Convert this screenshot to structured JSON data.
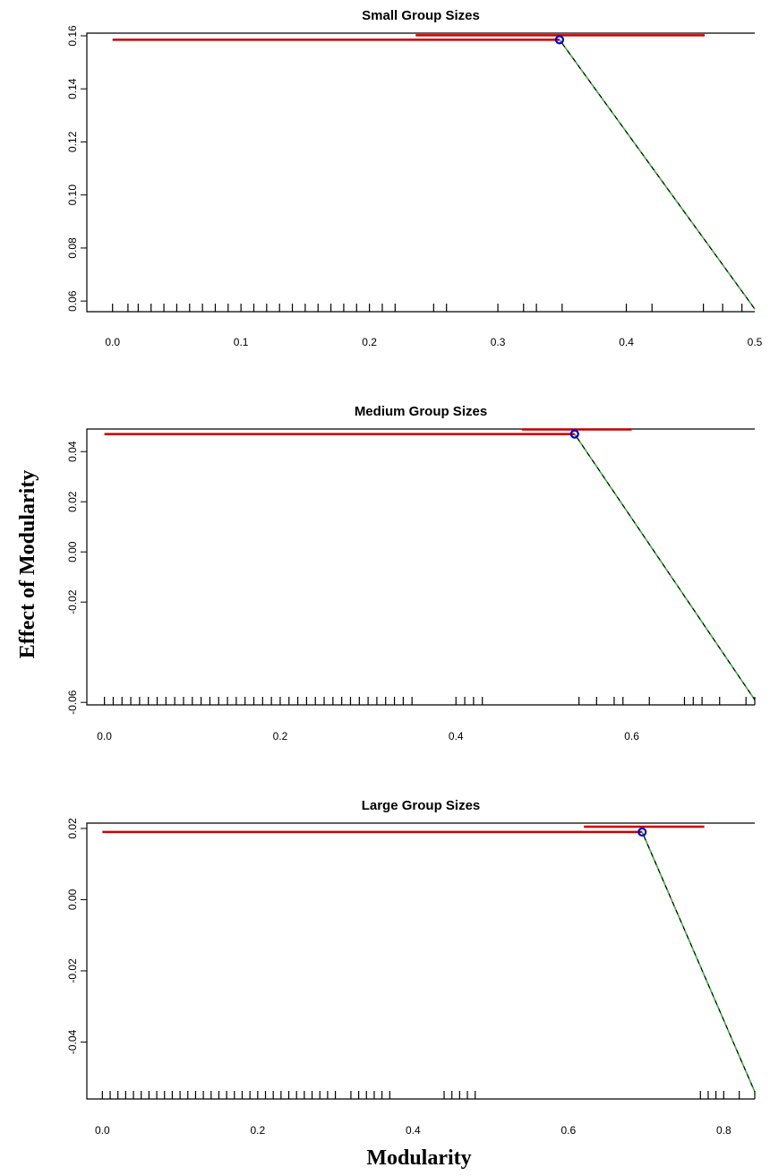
{
  "ylabel": "Effect of Modularity",
  "xlabel": "Modularity",
  "colors": {
    "threshold_line": "#cc0000",
    "fit_line": "#000000",
    "fit_dashed": "#33bb33",
    "breakpoint_marker": "#0000cc",
    "axis": "#000000"
  },
  "chart_data": [
    {
      "type": "line",
      "title": "Small Group Sizes",
      "xlim": [
        -0.02,
        0.5
      ],
      "ylim": [
        0.056,
        0.161
      ],
      "xticks": [
        "0.0",
        "0.1",
        "0.2",
        "0.3",
        "0.4",
        "0.5"
      ],
      "xtick_values": [
        0.0,
        0.1,
        0.2,
        0.3,
        0.4,
        0.5
      ],
      "yticks": [
        "0.06",
        "0.08",
        "0.10",
        "0.12",
        "0.14",
        "0.16"
      ],
      "ytick_values": [
        0.06,
        0.08,
        0.1,
        0.12,
        0.14,
        0.16
      ],
      "fit": {
        "x": [
          0.0,
          0.348,
          0.5
        ],
        "y": [
          0.1585,
          0.1585,
          0.057
        ]
      },
      "breakpoint": {
        "x": 0.348,
        "y": 0.1585
      },
      "confidence_interval": {
        "x": [
          0.236,
          0.461
        ],
        "y": 0.1602
      },
      "rug": [
        0.0,
        0.012,
        0.02,
        0.03,
        0.04,
        0.05,
        0.06,
        0.07,
        0.08,
        0.09,
        0.1,
        0.11,
        0.12,
        0.13,
        0.14,
        0.15,
        0.16,
        0.17,
        0.18,
        0.19,
        0.2,
        0.21,
        0.22,
        0.25,
        0.26,
        0.3,
        0.32,
        0.33,
        0.35,
        0.4,
        0.42,
        0.46,
        0.475,
        0.49
      ]
    },
    {
      "type": "line",
      "title": "Medium Group Sizes",
      "xlim": [
        -0.02,
        0.74
      ],
      "ylim": [
        -0.061,
        0.049
      ],
      "xticks": [
        "0.0",
        "0.2",
        "0.4",
        "0.6"
      ],
      "xtick_values": [
        0.0,
        0.2,
        0.4,
        0.6
      ],
      "yticks": [
        "-0.06",
        "-0.02",
        "0.00",
        "0.02",
        "0.04"
      ],
      "ytick_values": [
        -0.06,
        -0.02,
        0.0,
        0.02,
        0.04
      ],
      "fit": {
        "x": [
          0.0,
          0.535,
          0.74
        ],
        "y": [
          0.047,
          0.047,
          -0.059
        ]
      },
      "breakpoint": {
        "x": 0.535,
        "y": 0.047
      },
      "confidence_interval": {
        "x": [
          0.475,
          0.6
        ],
        "y": 0.0488
      },
      "rug": [
        0.0,
        0.01,
        0.02,
        0.03,
        0.04,
        0.05,
        0.06,
        0.07,
        0.08,
        0.09,
        0.1,
        0.11,
        0.12,
        0.13,
        0.14,
        0.15,
        0.16,
        0.17,
        0.18,
        0.19,
        0.2,
        0.21,
        0.22,
        0.23,
        0.24,
        0.25,
        0.26,
        0.27,
        0.28,
        0.29,
        0.3,
        0.31,
        0.32,
        0.33,
        0.34,
        0.35,
        0.4,
        0.41,
        0.42,
        0.43,
        0.54,
        0.56,
        0.58,
        0.59,
        0.62,
        0.66,
        0.67,
        0.68,
        0.7,
        0.73,
        0.74
      ]
    },
    {
      "type": "line",
      "title": "Large Group Sizes",
      "xlim": [
        -0.02,
        0.84
      ],
      "ylim": [
        -0.056,
        0.0215
      ],
      "xticks": [
        "0.0",
        "0.2",
        "0.4",
        "0.6",
        "0.8"
      ],
      "xtick_values": [
        0.0,
        0.2,
        0.4,
        0.6,
        0.8
      ],
      "yticks": [
        "-0.04",
        "-0.02",
        "0.00",
        "0.02"
      ],
      "ytick_values": [
        -0.04,
        -0.02,
        0.0,
        0.02
      ],
      "fit": {
        "x": [
          0.0,
          0.695,
          0.84
        ],
        "y": [
          0.019,
          0.019,
          -0.054
        ]
      },
      "breakpoint": {
        "x": 0.695,
        "y": 0.019
      },
      "confidence_interval": {
        "x": [
          0.62,
          0.775
        ],
        "y": 0.0205
      },
      "rug": [
        0.0,
        0.01,
        0.02,
        0.03,
        0.04,
        0.05,
        0.06,
        0.07,
        0.08,
        0.09,
        0.1,
        0.11,
        0.12,
        0.13,
        0.14,
        0.15,
        0.16,
        0.17,
        0.18,
        0.19,
        0.2,
        0.21,
        0.22,
        0.23,
        0.24,
        0.25,
        0.26,
        0.27,
        0.28,
        0.29,
        0.3,
        0.32,
        0.33,
        0.34,
        0.35,
        0.36,
        0.37,
        0.44,
        0.45,
        0.46,
        0.47,
        0.48,
        0.77,
        0.78,
        0.79,
        0.8,
        0.82,
        0.84
      ]
    }
  ]
}
